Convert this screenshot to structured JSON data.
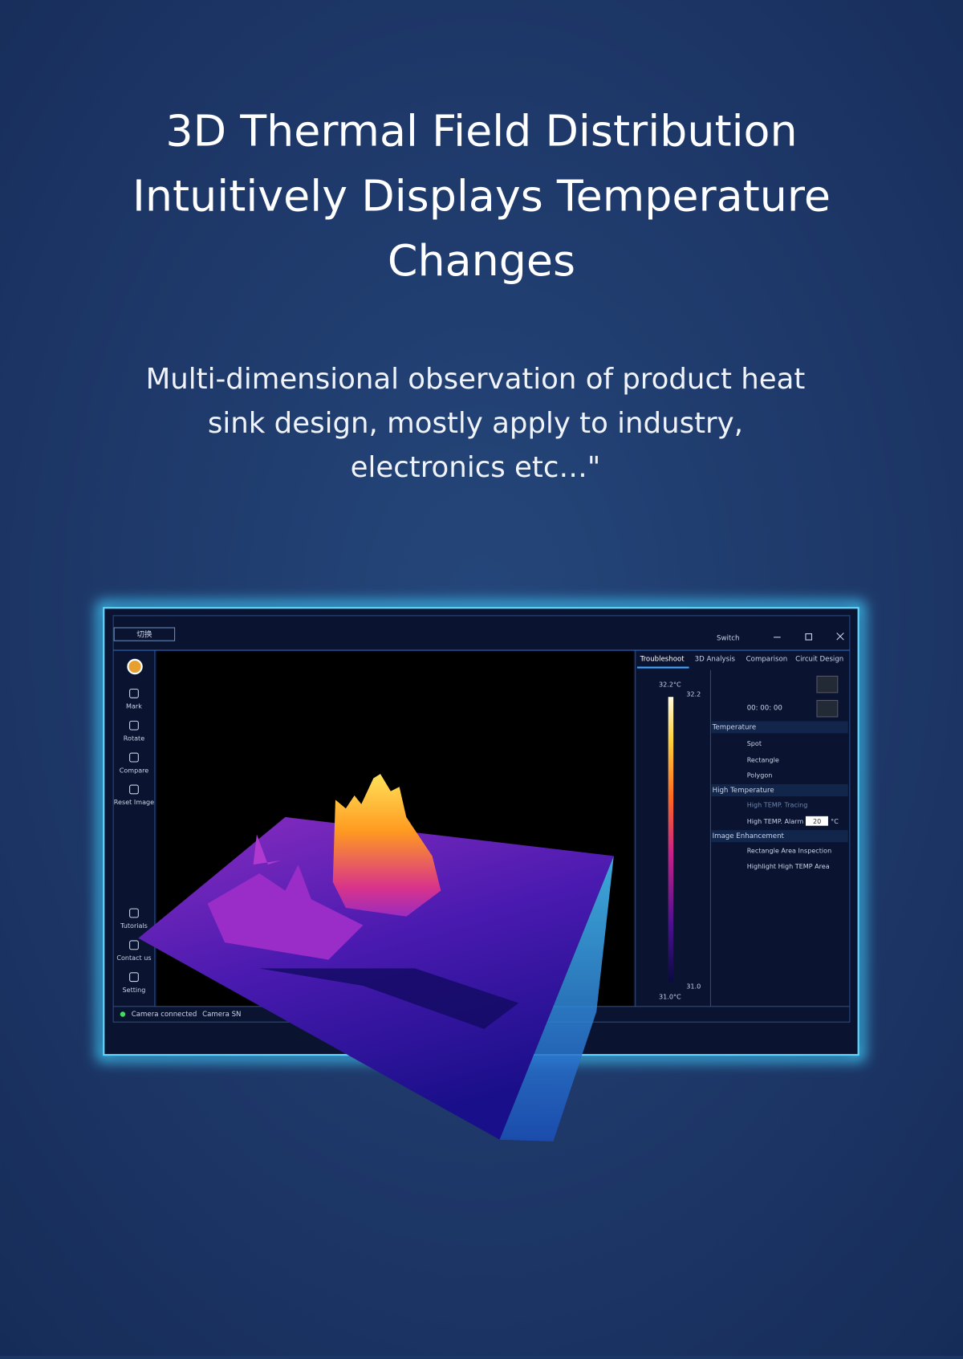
{
  "header": {
    "title_lines": [
      "3D Thermal Field Distribution",
      "Intuitively Displays Temperature",
      "Changes"
    ],
    "subtitle_lines": [
      "Multi-dimensional observation of product heat",
      "sink design, mostly apply to industry,",
      "electronics etc…\""
    ]
  },
  "window": {
    "title_button": "切换",
    "switch": "Switch",
    "tabs": [
      "Troubleshoot",
      "3D Analysis",
      "Comparison",
      "Circuit Design"
    ],
    "sidebar": [
      "Mark",
      "Rotate",
      "Compare",
      "Reset Image",
      "Tutorials",
      "Contact us",
      "Setting"
    ],
    "scale": {
      "max_label": "32.2°C",
      "max": "32.2",
      "min": "31.0",
      "min_label": "31.0°C"
    },
    "timer": "00: 00: 00",
    "sections": [
      {
        "title": "Temperature",
        "items": [
          "Spot",
          "Rectangle",
          "Polygon"
        ]
      },
      {
        "title": "High Temperature",
        "items": [
          "High TEMP. Tracing",
          "High TEMP. Alarm"
        ]
      },
      {
        "title": "Image Enhancement",
        "items": [
          "Rectangle Area Inspection",
          "Highlight High TEMP Area"
        ]
      }
    ],
    "alarm_value": "20",
    "alarm_unit": "°C",
    "status": [
      "Camera connected",
      "Camera SN"
    ]
  }
}
